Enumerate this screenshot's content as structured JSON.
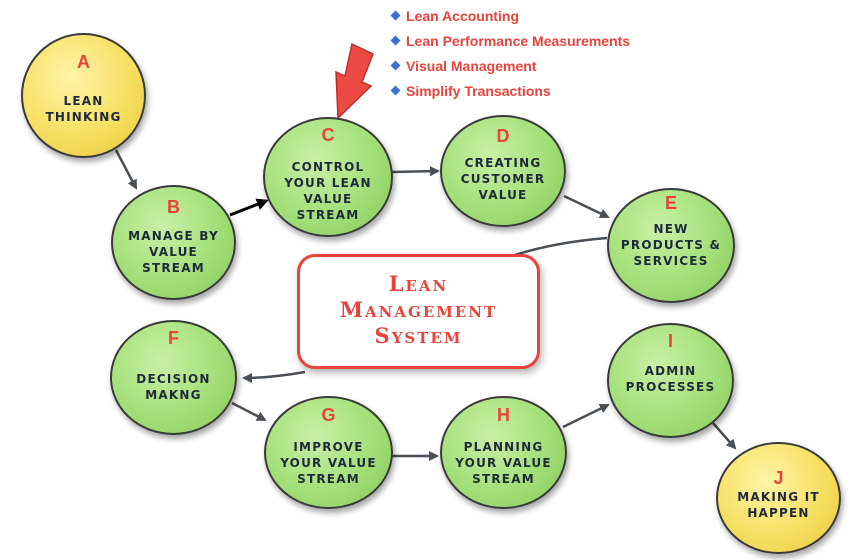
{
  "bullets": [
    {
      "text": "Lean Accounting",
      "icon": "diamond-bullet-icon"
    },
    {
      "text": "Lean Performance Measurements",
      "icon": "diamond-bullet-icon"
    },
    {
      "text": "Visual Management",
      "icon": "diamond-bullet-icon"
    },
    {
      "text": "Simplify Transactions",
      "icon": "diamond-bullet-icon"
    }
  ],
  "center": {
    "title": "Lean\nManagement\nSystem"
  },
  "nodes": {
    "a": {
      "letter": "A",
      "label": "LEAN\nTHINKING"
    },
    "b": {
      "letter": "B",
      "label": "MANAGE BY\nVALUE\nSTREAM"
    },
    "c": {
      "letter": "C",
      "label": "CONTROL\nYOUR LEAN\nVALUE\nSTREAM"
    },
    "d": {
      "letter": "D",
      "label": "CREATING\nCUSTOMER\nVALUE"
    },
    "e": {
      "letter": "E",
      "label": "NEW\nPRODUCTS &\nSERVICES"
    },
    "f": {
      "letter": "F",
      "label": "DECISION\nMAKNG"
    },
    "g": {
      "letter": "G",
      "label": "IMPROVE\nYOUR VALUE\nSTREAM"
    },
    "h": {
      "letter": "H",
      "label": "PLANNING\nYOUR VALUE\nSTREAM"
    },
    "i": {
      "letter": "I",
      "label": "ADMIN\nPROCESSES"
    },
    "j": {
      "letter": "J",
      "label": "MAKING IT\nHAPPEN"
    }
  },
  "colors": {
    "accent_red": "#e8433c",
    "node_green": "#a3df78",
    "node_yellow": "#f7df62",
    "arrow_gray": "#4a4f55",
    "bullet_blue": "#3b6fd6"
  }
}
